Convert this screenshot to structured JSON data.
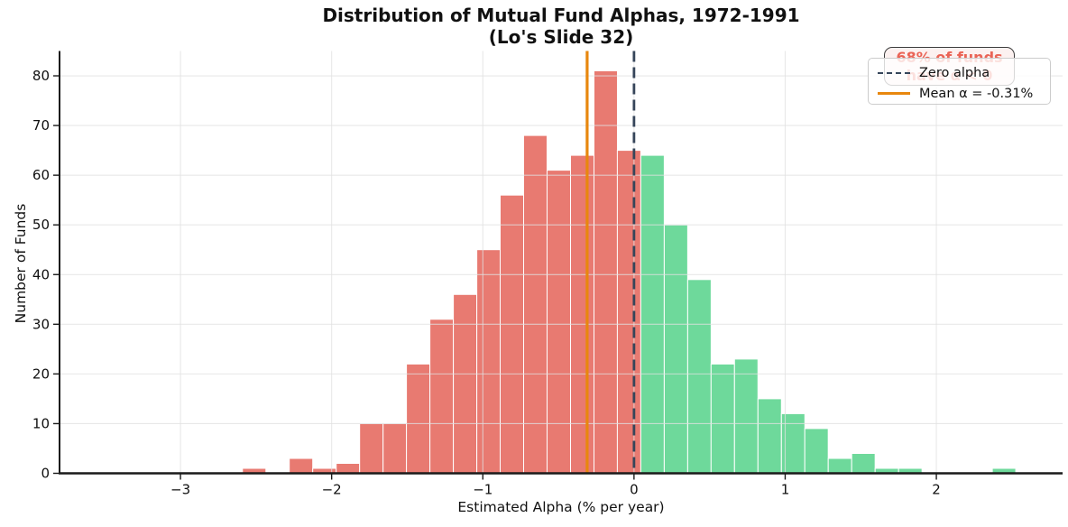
{
  "figure": {
    "title": "Distribution of Mutual Fund Alphas, 1972-1991",
    "subtitle": "(Lo's Slide 32)"
  },
  "chart_data": {
    "type": "bar",
    "subtype": "histogram",
    "title": "Distribution of Mutual Fund Alphas, 1972-1991",
    "subtitle": "(Lo's Slide 32)",
    "xlabel": "Estimated Alpha (% per year)",
    "ylabel": "Number of Funds",
    "xlim": [
      -3.8,
      2.835
    ],
    "ylim": [
      0,
      85
    ],
    "xticks": [
      -3,
      -2,
      -1,
      0,
      1,
      2
    ],
    "yticks": [
      0,
      10,
      20,
      30,
      40,
      50,
      60,
      70,
      80
    ],
    "grid": true,
    "legend_position": "upper right",
    "histogram": {
      "bin_start": -2.59,
      "bin_width": 0.155,
      "counts": [
        1,
        0,
        3,
        1,
        2,
        10,
        10,
        22,
        31,
        36,
        45,
        56,
        68,
        61,
        64,
        81,
        65,
        64,
        50,
        39,
        22,
        23,
        15,
        12,
        9,
        3,
        4,
        1,
        1,
        0,
        0,
        0,
        1
      ],
      "split_index": 17,
      "negative_color": "#e87a71",
      "positive_color": "#6ed99b",
      "bar_edge_color": "#ffffff",
      "total_funds": 800
    },
    "reference_lines": [
      {
        "id": "zero-alpha",
        "x": 0,
        "style": "dashed",
        "color": "#36455a"
      },
      {
        "id": "mean-alpha",
        "x": -0.31,
        "style": "solid",
        "color": "#e8870e"
      }
    ],
    "legend": {
      "items": [
        {
          "id": "zero-alpha",
          "label": "Zero alpha",
          "color": "#36455a",
          "line_style": "dashed"
        },
        {
          "id": "mean-alpha",
          "label": "Mean α = -0.31%",
          "color": "#e8870e",
          "line_style": "solid"
        }
      ]
    },
    "annotation": {
      "line1": "68% of funds",
      "line2": "have α < 0",
      "text_color": "#e74c3c"
    },
    "axis_colors": {
      "spine": "#1a1a1a",
      "gridline": "#e1e1e1",
      "tick_label": "#111111"
    }
  }
}
